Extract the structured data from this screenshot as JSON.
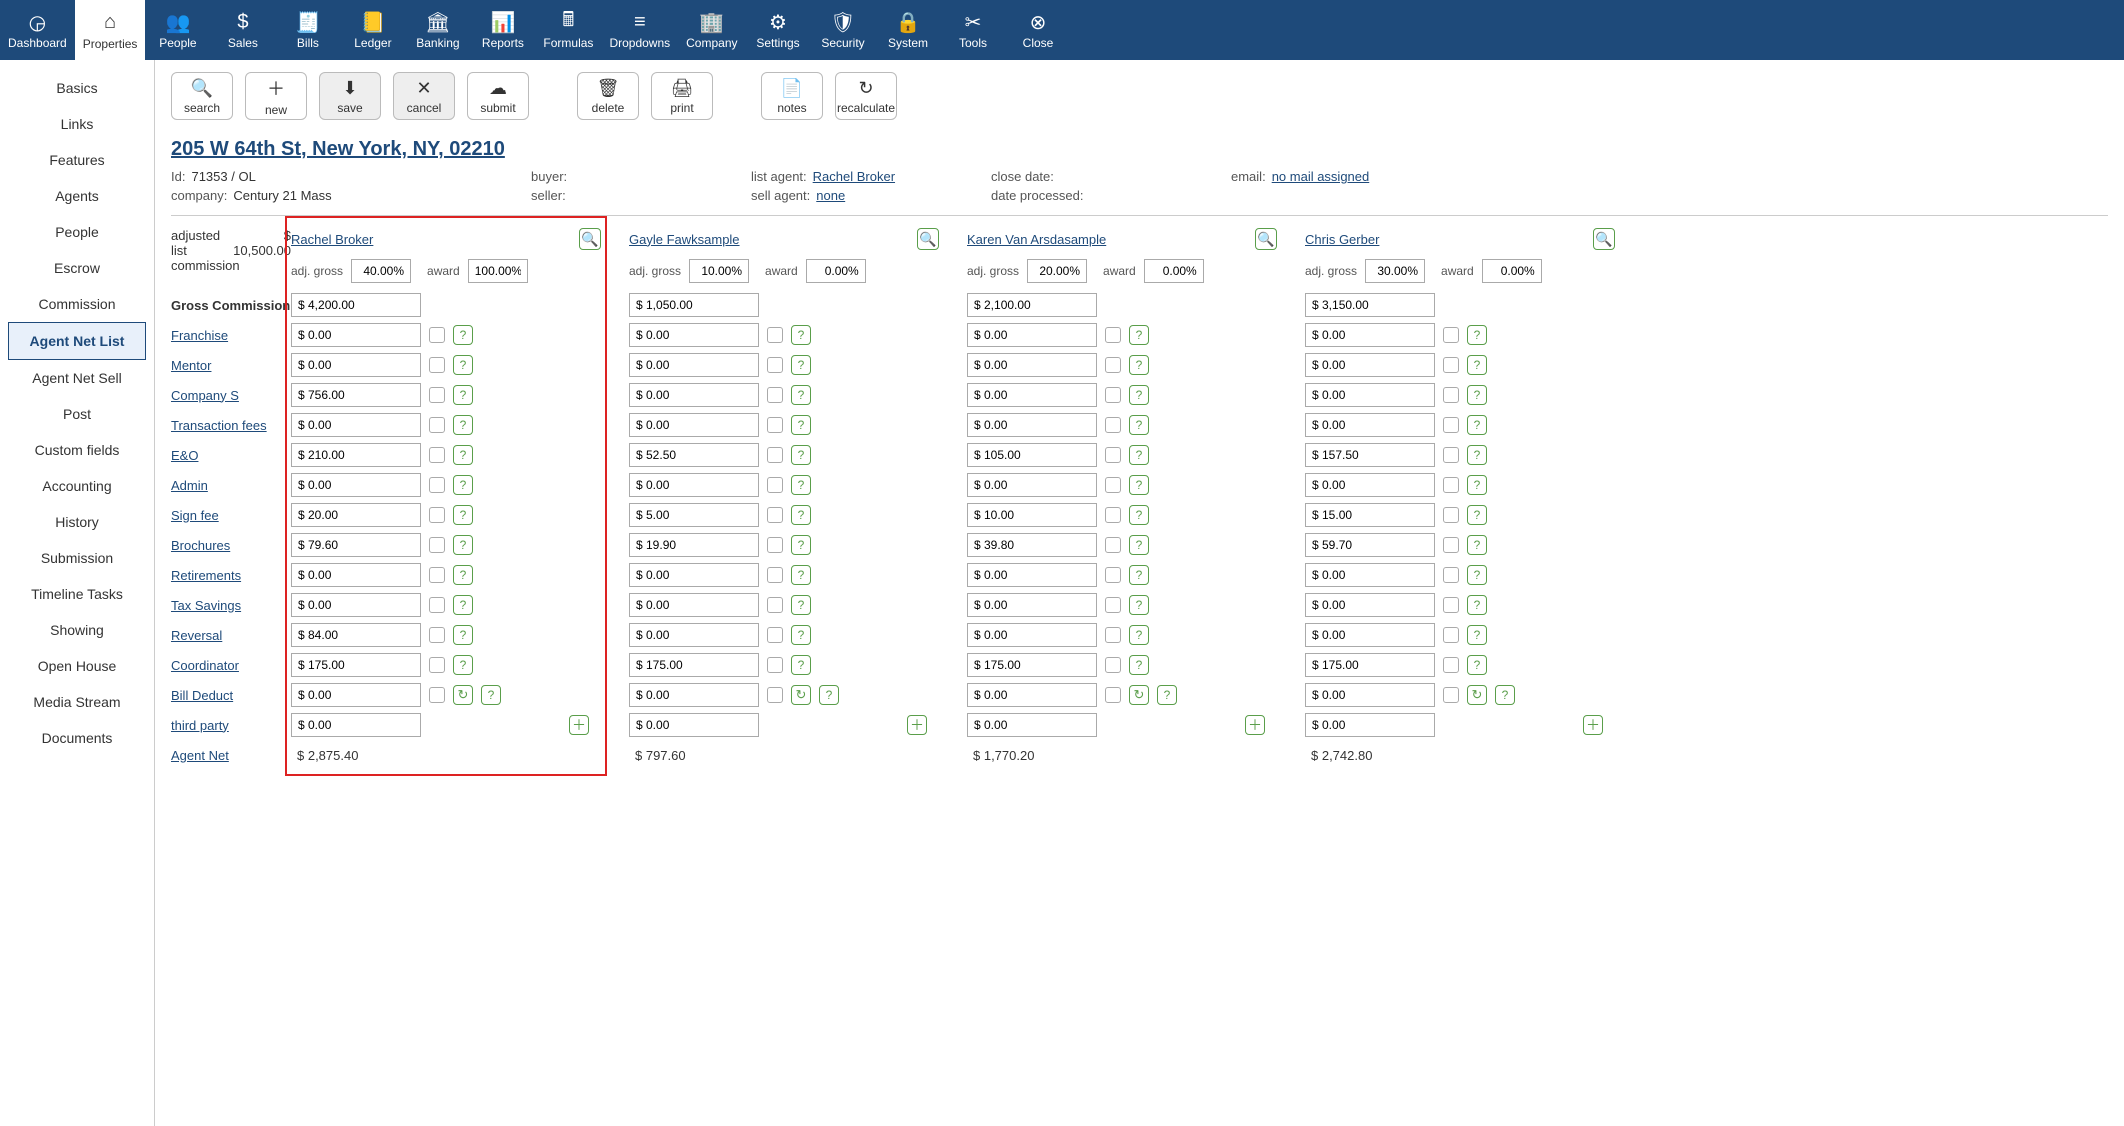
{
  "topnav": [
    {
      "id": "dashboard",
      "label": "Dashboard",
      "icon": "◶"
    },
    {
      "id": "properties",
      "label": "Properties",
      "icon": "⌂",
      "active": true
    },
    {
      "id": "people",
      "label": "People",
      "icon": "👥"
    },
    {
      "id": "sales",
      "label": "Sales",
      "icon": "$"
    },
    {
      "id": "bills",
      "label": "Bills",
      "icon": "🧾"
    },
    {
      "id": "ledger",
      "label": "Ledger",
      "icon": "📒"
    },
    {
      "id": "banking",
      "label": "Banking",
      "icon": "🏛"
    },
    {
      "id": "reports",
      "label": "Reports",
      "icon": "📊"
    },
    {
      "id": "formulas",
      "label": "Formulas",
      "icon": "🖩"
    },
    {
      "id": "dropdowns",
      "label": "Dropdowns",
      "icon": "≡"
    },
    {
      "id": "company",
      "label": "Company",
      "icon": "🏢"
    },
    {
      "id": "settings",
      "label": "Settings",
      "icon": "⚙"
    },
    {
      "id": "security",
      "label": "Security",
      "icon": "🛡"
    },
    {
      "id": "system",
      "label": "System",
      "icon": "🔒"
    },
    {
      "id": "tools",
      "label": "Tools",
      "icon": "✂"
    },
    {
      "id": "close",
      "label": "Close",
      "icon": "⊗"
    }
  ],
  "sidebar": [
    {
      "id": "basics",
      "label": "Basics"
    },
    {
      "id": "links",
      "label": "Links"
    },
    {
      "id": "features",
      "label": "Features"
    },
    {
      "id": "agents",
      "label": "Agents"
    },
    {
      "id": "people",
      "label": "People"
    },
    {
      "id": "escrow",
      "label": "Escrow"
    },
    {
      "id": "commission",
      "label": "Commission"
    },
    {
      "id": "agent-net-list",
      "label": "Agent Net List",
      "active": true
    },
    {
      "id": "agent-net-sell",
      "label": "Agent Net Sell"
    },
    {
      "id": "post",
      "label": "Post"
    },
    {
      "id": "custom-fields",
      "label": "Custom fields"
    },
    {
      "id": "accounting",
      "label": "Accounting"
    },
    {
      "id": "history",
      "label": "History"
    },
    {
      "id": "submission",
      "label": "Submission"
    },
    {
      "id": "timeline-tasks",
      "label": "Timeline Tasks"
    },
    {
      "id": "showing",
      "label": "Showing"
    },
    {
      "id": "open-house",
      "label": "Open House"
    },
    {
      "id": "media-stream",
      "label": "Media Stream"
    },
    {
      "id": "documents",
      "label": "Documents"
    }
  ],
  "toolbar": {
    "search": "search",
    "new": "new",
    "save": "save",
    "cancel": "cancel",
    "submit": "submit",
    "delete": "delete",
    "print": "print",
    "notes": "notes",
    "recalculate": "recalculate"
  },
  "property": {
    "title": "205 W 64th St, New York, NY, 02210",
    "id_label": "Id:",
    "id": "71353 / OL",
    "company_label": "company:",
    "company": "Century 21 Mass",
    "buyer_label": "buyer:",
    "buyer": "",
    "seller_label": "seller:",
    "seller": "",
    "list_agent_label": "list agent:",
    "list_agent": "Rachel Broker",
    "sell_agent_label": "sell agent:",
    "sell_agent": "none",
    "close_date_label": "close date:",
    "close_date": "",
    "date_processed_label": "date processed:",
    "date_processed": "",
    "email_label": "email:",
    "email": "no mail assigned"
  },
  "adjusted": {
    "label1": "adjusted",
    "label2": "list",
    "label3": "commission",
    "symbol": "$",
    "amount": "10,500.00"
  },
  "row_labels": [
    {
      "key": "gross",
      "label": "Gross Commission",
      "bold": true,
      "link": false
    },
    {
      "key": "franchise",
      "label": "Franchise",
      "link": true
    },
    {
      "key": "mentor",
      "label": "Mentor",
      "link": true
    },
    {
      "key": "company_s",
      "label": "Company S",
      "link": true
    },
    {
      "key": "txn_fees",
      "label": "Transaction fees",
      "link": true
    },
    {
      "key": "eo",
      "label": "E&O",
      "link": true
    },
    {
      "key": "admin",
      "label": "Admin",
      "link": true
    },
    {
      "key": "sign_fee",
      "label": "Sign fee",
      "link": true
    },
    {
      "key": "brochures",
      "label": "Brochures",
      "link": true
    },
    {
      "key": "retirements",
      "label": "Retirements",
      "link": true
    },
    {
      "key": "tax_savings",
      "label": "Tax Savings",
      "link": true
    },
    {
      "key": "reversal",
      "label": "Reversal",
      "link": true
    },
    {
      "key": "coordinator",
      "label": "Coordinator",
      "link": true
    },
    {
      "key": "bill_deduct",
      "label": "Bill Deduct",
      "link": true,
      "refresh": true
    },
    {
      "key": "third_party",
      "label": "third party",
      "link": true,
      "plus_only": true
    },
    {
      "key": "agent_net",
      "label": "Agent Net",
      "link": true,
      "net": true
    }
  ],
  "pct_labels": {
    "adj_gross": "adj. gross",
    "award": "award"
  },
  "agents": [
    {
      "name": "Rachel Broker",
      "boxed": true,
      "adj_gross": "40.00%",
      "award": "100.00%",
      "vals": {
        "gross": "$ 4,200.00",
        "franchise": "$ 0.00",
        "mentor": "$ 0.00",
        "company_s": "$ 756.00",
        "txn_fees": "$ 0.00",
        "eo": "$ 210.00",
        "admin": "$ 0.00",
        "sign_fee": "$ 20.00",
        "brochures": "$ 79.60",
        "retirements": "$ 0.00",
        "tax_savings": "$ 0.00",
        "reversal": "$ 84.00",
        "coordinator": "$ 175.00",
        "bill_deduct": "$ 0.00",
        "third_party": "$ 0.00",
        "agent_net": "$ 2,875.40"
      }
    },
    {
      "name": "Gayle Fawksample",
      "boxed": false,
      "adj_gross": "10.00%",
      "award": "0.00%",
      "vals": {
        "gross": "$ 1,050.00",
        "franchise": "$ 0.00",
        "mentor": "$ 0.00",
        "company_s": "$ 0.00",
        "txn_fees": "$ 0.00",
        "eo": "$ 52.50",
        "admin": "$ 0.00",
        "sign_fee": "$ 5.00",
        "brochures": "$ 19.90",
        "retirements": "$ 0.00",
        "tax_savings": "$ 0.00",
        "reversal": "$ 0.00",
        "coordinator": "$ 175.00",
        "bill_deduct": "$ 0.00",
        "third_party": "$ 0.00",
        "agent_net": "$ 797.60"
      }
    },
    {
      "name": "Karen Van Arsdasample",
      "boxed": false,
      "adj_gross": "20.00%",
      "award": "0.00%",
      "vals": {
        "gross": "$ 2,100.00",
        "franchise": "$ 0.00",
        "mentor": "$ 0.00",
        "company_s": "$ 0.00",
        "txn_fees": "$ 0.00",
        "eo": "$ 105.00",
        "admin": "$ 0.00",
        "sign_fee": "$ 10.00",
        "brochures": "$ 39.80",
        "retirements": "$ 0.00",
        "tax_savings": "$ 0.00",
        "reversal": "$ 0.00",
        "coordinator": "$ 175.00",
        "bill_deduct": "$ 0.00",
        "third_party": "$ 0.00",
        "agent_net": "$ 1,770.20"
      }
    },
    {
      "name": "Chris Gerber",
      "boxed": false,
      "adj_gross": "30.00%",
      "award": "0.00%",
      "vals": {
        "gross": "$ 3,150.00",
        "franchise": "$ 0.00",
        "mentor": "$ 0.00",
        "company_s": "$ 0.00",
        "txn_fees": "$ 0.00",
        "eo": "$ 157.50",
        "admin": "$ 0.00",
        "sign_fee": "$ 15.00",
        "brochures": "$ 59.70",
        "retirements": "$ 0.00",
        "tax_savings": "$ 0.00",
        "reversal": "$ 0.00",
        "coordinator": "$ 175.00",
        "bill_deduct": "$ 0.00",
        "third_party": "$ 0.00",
        "agent_net": "$ 2,742.80"
      }
    }
  ]
}
